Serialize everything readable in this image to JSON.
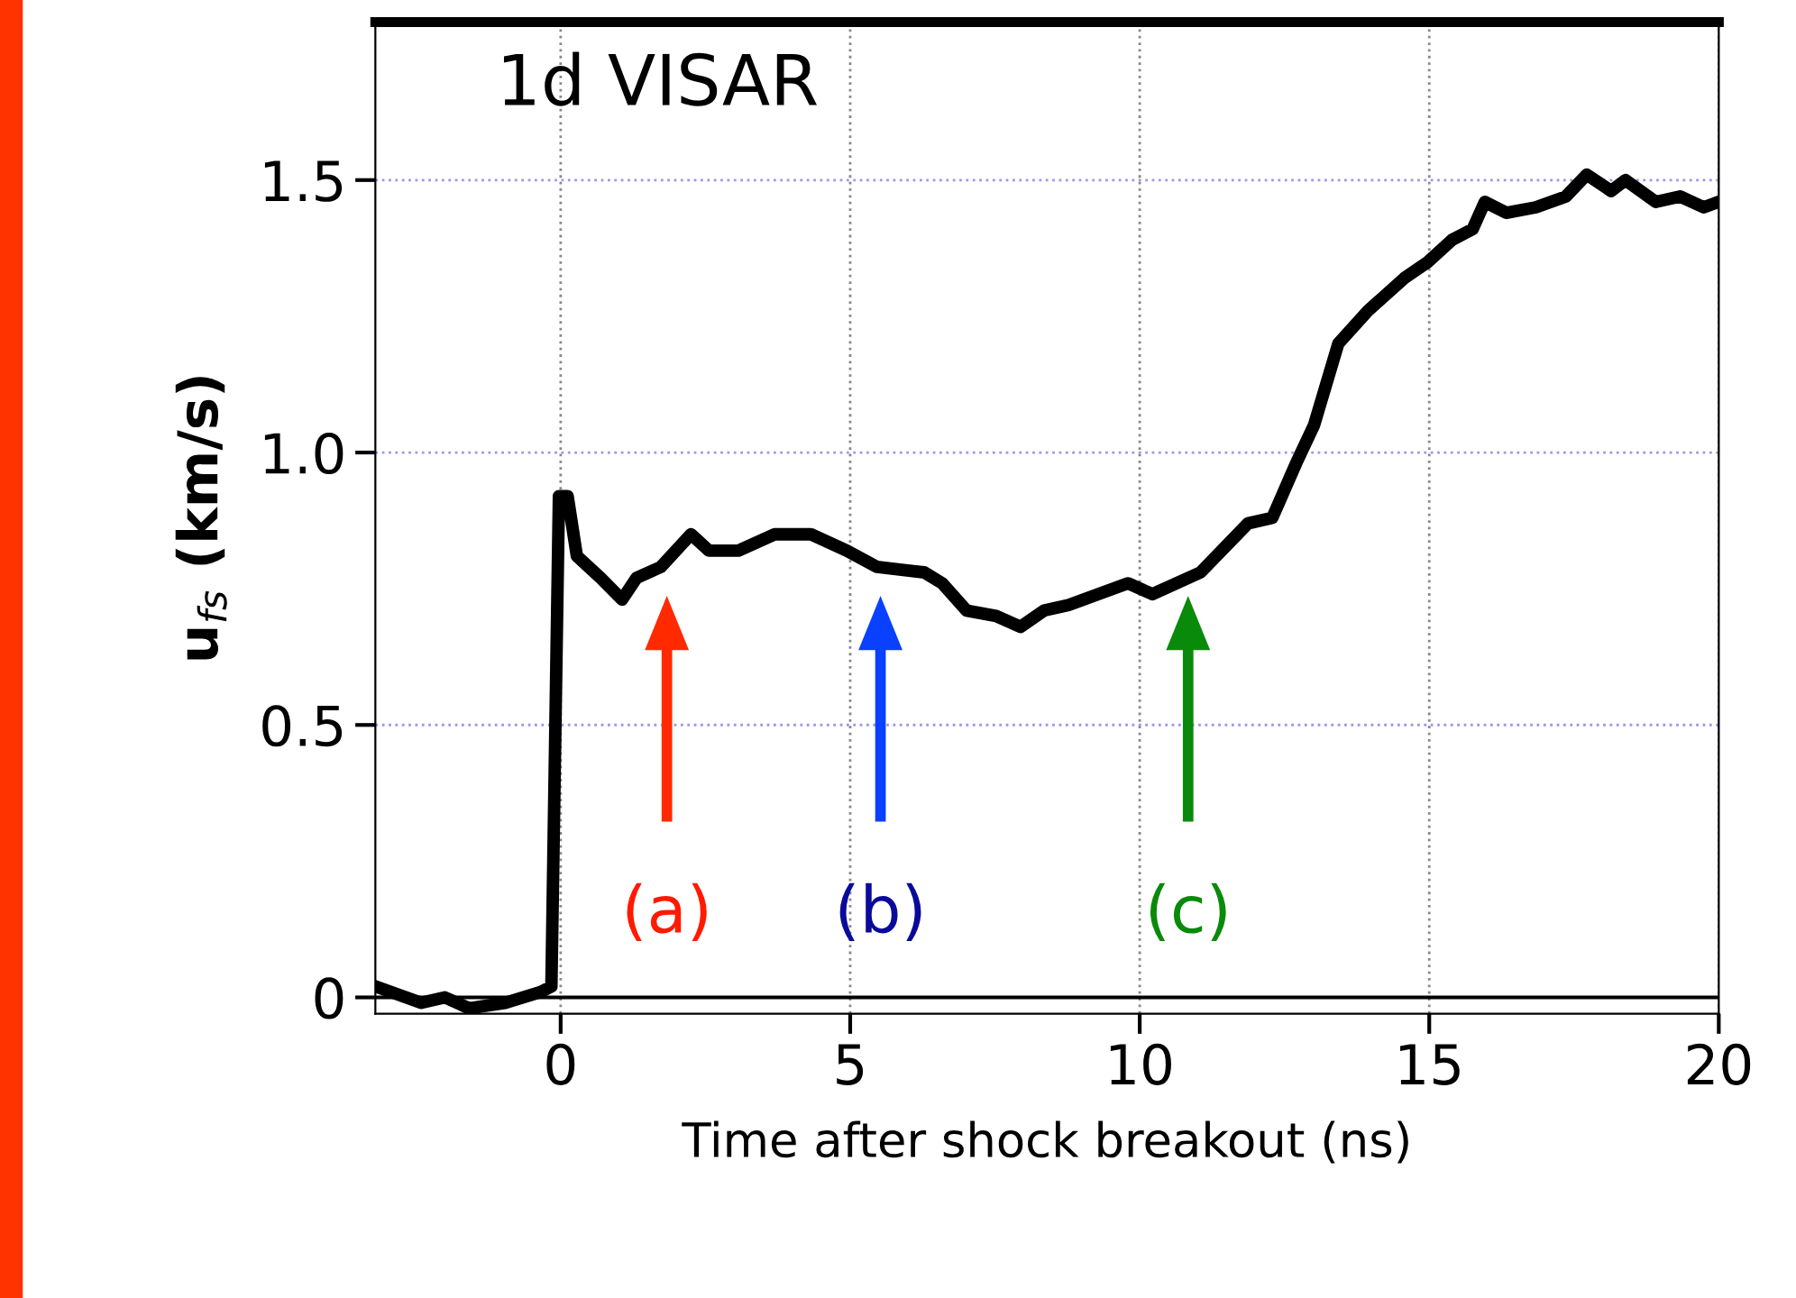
{
  "chart_data": {
    "type": "line",
    "xlabel": "Time after shock breakout (ns)",
    "ylabel": "u$_{fs}$ (km/s)",
    "annotations": [
      "1d VISAR",
      "(a)",
      "(b)",
      "(c)"
    ],
    "series": [
      {
        "color": "#000000",
        "x": [
          -3.19,
          -2.41,
          -2.0,
          -1.58,
          -0.96,
          -0.34,
          -0.16,
          -0.03,
          0.12,
          0.28,
          0.69,
          1.06,
          1.31,
          1.73,
          2.25,
          2.56,
          3.07,
          3.7,
          4.32,
          4.94,
          5.46,
          6.28,
          6.59,
          7.01,
          7.52,
          7.94,
          8.35,
          8.77,
          9.8,
          10.22,
          11.05,
          11.87,
          12.29,
          12.7,
          13.01,
          13.43,
          13.94,
          14.57,
          14.98,
          15.39,
          15.75,
          15.96,
          16.33,
          16.84,
          17.36,
          17.72,
          18.14,
          18.39,
          18.91,
          19.33,
          19.74,
          20.0
        ],
        "values": [
          0.02,
          -0.01,
          0.0,
          -0.02,
          -0.01,
          0.01,
          0.02,
          0.92,
          0.92,
          0.81,
          0.77,
          0.73,
          0.77,
          0.79,
          0.85,
          0.82,
          0.82,
          0.85,
          0.85,
          0.82,
          0.79,
          0.78,
          0.76,
          0.71,
          0.7,
          0.68,
          0.71,
          0.72,
          0.76,
          0.74,
          0.78,
          0.87,
          0.88,
          0.98,
          1.05,
          1.2,
          1.26,
          1.32,
          1.35,
          1.39,
          1.41,
          1.46,
          1.44,
          1.45,
          1.47,
          1.51,
          1.48,
          1.5,
          1.46,
          1.47,
          1.45,
          1.46
        ]
      }
    ],
    "xlim": [
      -3.2,
      20
    ],
    "ylim": [
      -0.03,
      1.79
    ],
    "xticks": [
      0,
      5,
      10,
      15,
      20
    ],
    "yticks": [
      0,
      0.5,
      {
        "value": 1.0,
        "label": "1.0"
      },
      1.5
    ],
    "grid": true,
    "marker": "none",
    "line_style": "solid",
    "legend": false,
    "ref_lines": [
      {
        "axis": "y",
        "value": 0,
        "color": "#000000"
      }
    ]
  }
}
